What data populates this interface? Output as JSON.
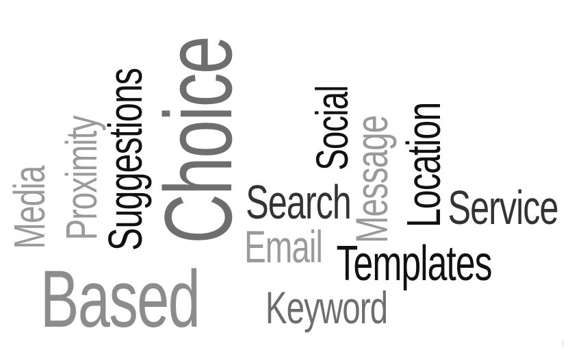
{
  "word_cloud": {
    "words": [
      {
        "id": "based",
        "text": "Based",
        "color": "#8c8c8c",
        "orientation": "horizontal"
      },
      {
        "id": "choice",
        "text": "Choice",
        "color": "#6e6e6e",
        "orientation": "vertical"
      },
      {
        "id": "suggestions",
        "text": "Suggestions",
        "color": "#111111",
        "orientation": "vertical"
      },
      {
        "id": "proximity",
        "text": "Proximity",
        "color": "#9a9a9a",
        "orientation": "vertical"
      },
      {
        "id": "media",
        "text": "Media",
        "color": "#9a9a9a",
        "orientation": "vertical"
      },
      {
        "id": "social",
        "text": "Social",
        "color": "#111111",
        "orientation": "vertical"
      },
      {
        "id": "message",
        "text": "Message",
        "color": "#9a9a9a",
        "orientation": "vertical"
      },
      {
        "id": "location",
        "text": "Location",
        "color": "#111111",
        "orientation": "vertical"
      },
      {
        "id": "search",
        "text": "Search",
        "color": "#333333",
        "orientation": "horizontal"
      },
      {
        "id": "email",
        "text": "Email",
        "color": "#9a9a9a",
        "orientation": "horizontal"
      },
      {
        "id": "service",
        "text": "Service",
        "color": "#333333",
        "orientation": "horizontal"
      },
      {
        "id": "templates",
        "text": "Templates",
        "color": "#111111",
        "orientation": "horizontal"
      },
      {
        "id": "keyword",
        "text": "Keyword",
        "color": "#6e6e6e",
        "orientation": "horizontal"
      }
    ]
  }
}
